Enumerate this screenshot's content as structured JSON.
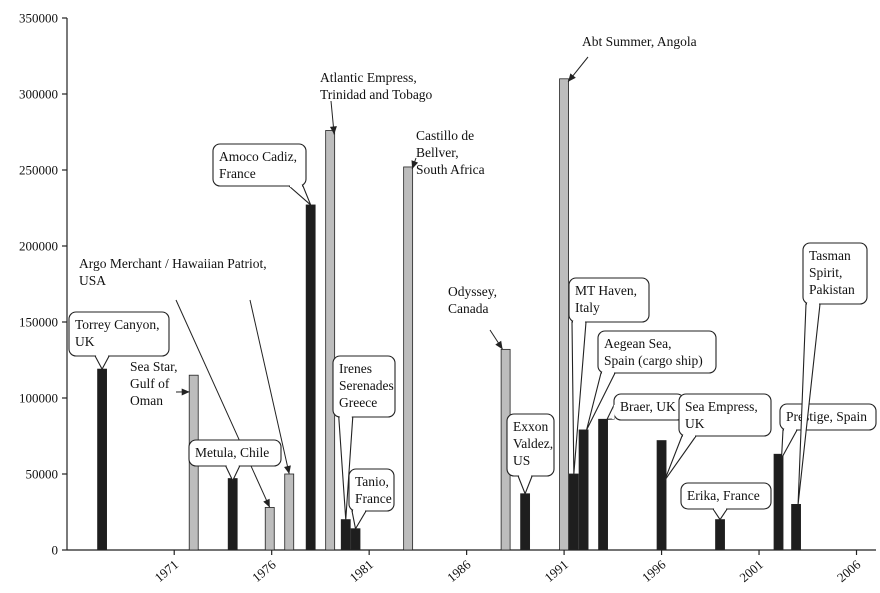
{
  "chart_data": {
    "type": "bar",
    "title": "",
    "xlabel": "",
    "ylabel": "",
    "xlim": [
      1965.5,
      2007
    ],
    "ylim": [
      0,
      350000
    ],
    "y_ticks": [
      0,
      50000,
      100000,
      150000,
      200000,
      250000,
      300000,
      350000
    ],
    "y_tick_labels": [
      "0",
      "50000",
      "100000",
      "150000",
      "200000",
      "250000",
      "300000",
      "350000"
    ],
    "x_ticks": [
      1971,
      1976,
      1981,
      1986,
      1991,
      1996,
      2001,
      2006
    ],
    "x_tick_labels": [
      "1971",
      "1976",
      "1981",
      "1986",
      "1991",
      "1996",
      "2001",
      "2006"
    ],
    "grid": false,
    "legend": "none",
    "colors": {
      "dark": "#1e1e1e",
      "light": "#bdbdbd"
    },
    "bars": [
      {
        "year": 1967.3,
        "value": 119000,
        "shade": "dark",
        "label": "Torrey Canyon, UK"
      },
      {
        "year": 1972.0,
        "value": 115000,
        "shade": "light",
        "label": "Sea Star, Gulf of Oman"
      },
      {
        "year": 1974.0,
        "value": 47000,
        "shade": "dark",
        "label": "Metula, Chile"
      },
      {
        "year": 1975.9,
        "value": 28000,
        "shade": "light",
        "label": "Argo Merchant"
      },
      {
        "year": 1976.9,
        "value": 50000,
        "shade": "light",
        "label": "Hawaiian Patriot"
      },
      {
        "year": 1978.0,
        "value": 227000,
        "shade": "dark",
        "label": "Amoco Cadiz, France"
      },
      {
        "year": 1979.0,
        "value": 276000,
        "shade": "light",
        "label": "Atlantic Empress, Trinidad and Tobago"
      },
      {
        "year": 1979.8,
        "value": 20000,
        "shade": "dark",
        "label": "Irenes Serenades Greece"
      },
      {
        "year": 1980.3,
        "value": 14000,
        "shade": "dark",
        "label": "Tanio, France"
      },
      {
        "year": 1983.0,
        "value": 252000,
        "shade": "light",
        "label": "Castillo de Bellver, South Africa"
      },
      {
        "year": 1988.0,
        "value": 132000,
        "shade": "light",
        "label": "Odyssey, Canada"
      },
      {
        "year": 1989.0,
        "value": 37000,
        "shade": "dark",
        "label": "Exxon Valdez, US"
      },
      {
        "year": 1991.0,
        "value": 310000,
        "shade": "light",
        "label": "Abt Summer, Angola"
      },
      {
        "year": 1991.5,
        "value": 50000,
        "shade": "dark",
        "label": "MT Haven, Italy"
      },
      {
        "year": 1992.0,
        "value": 79000,
        "shade": "dark",
        "label": "Aegean Sea, Spain (cargo ship)"
      },
      {
        "year": 1993.0,
        "value": 86000,
        "shade": "dark",
        "label": "Braer, UK"
      },
      {
        "year": 1996.0,
        "value": 72000,
        "shade": "dark",
        "label": "Sea Empress, UK"
      },
      {
        "year": 1999.0,
        "value": 20000,
        "shade": "dark",
        "label": "Erika, France"
      },
      {
        "year": 2002.0,
        "value": 63000,
        "shade": "dark",
        "label": "Prestige, Spain"
      },
      {
        "year": 2002.9,
        "value": 30000,
        "shade": "dark",
        "label": "Tasman Spirit, Pakistan"
      }
    ],
    "annotations": [
      {
        "id": "torrey",
        "lines": [
          "Torrey Canyon,",
          "UK"
        ],
        "boxed": true
      },
      {
        "id": "seastar",
        "lines": [
          "Sea Star,",
          "Gulf of",
          "Oman"
        ],
        "boxed": false
      },
      {
        "id": "argo",
        "lines": [
          "Argo Merchant / Hawaiian Patriot,",
          "USA"
        ],
        "boxed": false
      },
      {
        "id": "metula",
        "lines": [
          "Metula, Chile"
        ],
        "boxed": true
      },
      {
        "id": "amoco",
        "lines": [
          "Amoco Cadiz,",
          "France"
        ],
        "boxed": true
      },
      {
        "id": "atlantic",
        "lines": [
          "Atlantic Empress,",
          "Trinidad and Tobago"
        ],
        "boxed": false
      },
      {
        "id": "irenes",
        "lines": [
          "Irenes",
          "Serenades",
          "Greece"
        ],
        "boxed": true
      },
      {
        "id": "tanio",
        "lines": [
          "Tanio,",
          "France"
        ],
        "boxed": true
      },
      {
        "id": "castillo",
        "lines": [
          "Castillo de",
          "Bellver,",
          "South Africa"
        ],
        "boxed": false
      },
      {
        "id": "odyssey",
        "lines": [
          "Odyssey,",
          "Canada"
        ],
        "boxed": false
      },
      {
        "id": "exxon",
        "lines": [
          "Exxon",
          "Valdez,",
          "US"
        ],
        "boxed": true
      },
      {
        "id": "abt",
        "lines": [
          "Abt Summer, Angola"
        ],
        "boxed": false
      },
      {
        "id": "haven",
        "lines": [
          "MT Haven,",
          "Italy"
        ],
        "boxed": true
      },
      {
        "id": "aegean",
        "lines": [
          "Aegean Sea,",
          "Spain (cargo ship)"
        ],
        "boxed": true
      },
      {
        "id": "braer",
        "lines": [
          "Braer, UK"
        ],
        "boxed": true
      },
      {
        "id": "seaempress",
        "lines": [
          "Sea Empress,",
          "UK"
        ],
        "boxed": true
      },
      {
        "id": "erika",
        "lines": [
          "Erika, France"
        ],
        "boxed": true
      },
      {
        "id": "prestige",
        "lines": [
          "Prestige, Spain"
        ],
        "boxed": true
      },
      {
        "id": "tasman",
        "lines": [
          "Tasman",
          "Spirit,",
          "Pakistan"
        ],
        "boxed": true
      }
    ]
  }
}
